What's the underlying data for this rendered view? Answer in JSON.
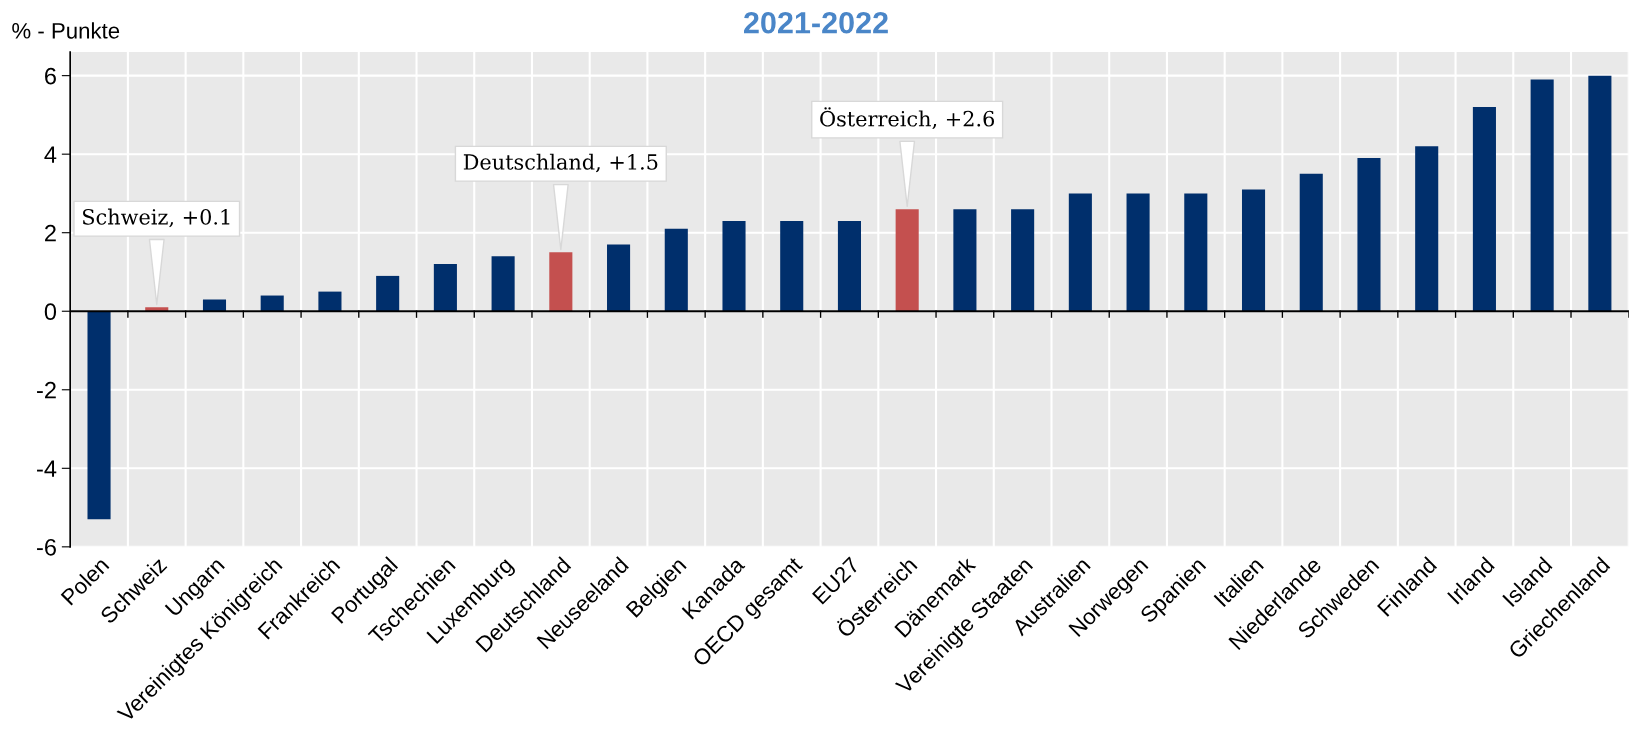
{
  "chart_data": {
    "type": "bar",
    "title": "2021-2022",
    "ylabel": "% - Punkte",
    "categories": [
      "Polen",
      "Schweiz",
      "Ungarn",
      "Vereinigtes Königreich",
      "Frankreich",
      "Portugal",
      "Tschechien",
      "Luxemburg",
      "Deutschland",
      "Neuseeland",
      "Belgien",
      "Kanada",
      "OECD gesamt",
      "EU27",
      "Österreich",
      "Dänemark",
      "Vereinigte Staaten",
      "Australien",
      "Norwegen",
      "Spanien",
      "Italien",
      "Niederlande",
      "Schweden",
      "Finland",
      "Irland",
      "Island",
      "Griechenland"
    ],
    "values": [
      -5.3,
      0.1,
      0.3,
      0.4,
      0.5,
      0.9,
      1.2,
      1.4,
      1.5,
      1.7,
      2.1,
      2.3,
      2.3,
      2.3,
      2.6,
      2.6,
      2.6,
      3.0,
      3.0,
      3.0,
      3.1,
      3.5,
      3.9,
      4.2,
      5.2,
      5.9,
      6.0
    ],
    "colors": [
      "#002f6c",
      "#c4504f",
      "#002f6c",
      "#002f6c",
      "#002f6c",
      "#002f6c",
      "#002f6c",
      "#002f6c",
      "#c4504f",
      "#002f6c",
      "#002f6c",
      "#002f6c",
      "#002f6c",
      "#002f6c",
      "#c4504f",
      "#002f6c",
      "#002f6c",
      "#002f6c",
      "#002f6c",
      "#002f6c",
      "#002f6c",
      "#002f6c",
      "#002f6c",
      "#002f6c",
      "#002f6c",
      "#002f6c",
      "#002f6c"
    ],
    "ylim": [
      -6,
      6.6
    ],
    "yticks": [
      {
        "value": -6,
        "label": "-6"
      },
      {
        "value": -4,
        "label": "-4"
      },
      {
        "value": -2,
        "label": "-2"
      },
      0,
      2,
      4,
      6
    ],
    "grid": true,
    "annotations": [
      {
        "text": "Schweiz, +0.1",
        "x": "Schweiz",
        "y": 0.1
      },
      {
        "text": "Deutschland, +1.5",
        "x": "Deutschland",
        "y": 1.5
      },
      {
        "text": "Österreich, +2.6",
        "x": "Österreich",
        "y": 2.6
      }
    ]
  }
}
